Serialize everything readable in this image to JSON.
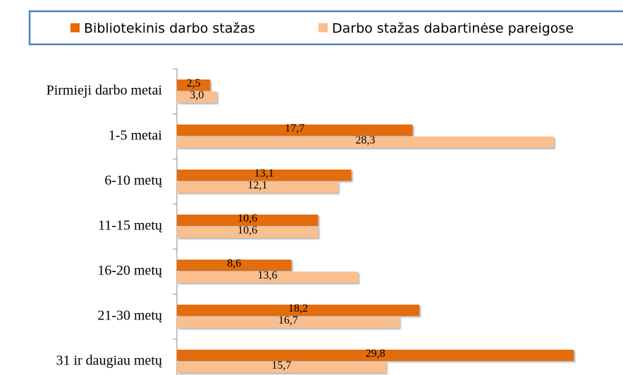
{
  "chart_data": {
    "type": "hbar",
    "categories": [
      "Pirmieji darbo metai",
      "1-5 metai",
      "6-10 metų",
      "11-15 metų",
      "16-20 metų",
      "21-30 metų",
      "31 ir daugiau metų"
    ],
    "series": [
      {
        "name": "Bibliotekinis darbo stažas",
        "color": "#e36c0a",
        "values": [
          2.5,
          17.7,
          13.1,
          10.6,
          8.6,
          18.2,
          29.8
        ],
        "value_labels": [
          "2,5",
          "17,7",
          "13,1",
          "10,6",
          "8,6",
          "18,2",
          "29,8"
        ]
      },
      {
        "name": "Darbo stažas dabartinėse pareigose",
        "color": "#fabf8f",
        "values": [
          3.0,
          28.3,
          12.1,
          10.6,
          13.6,
          16.7,
          15.7
        ],
        "value_labels": [
          "3,0",
          "28,3",
          "12,1",
          "10,6",
          "13,6",
          "16,7",
          "15,7"
        ]
      }
    ],
    "xlim": [
      0,
      30
    ],
    "legend": "top"
  }
}
